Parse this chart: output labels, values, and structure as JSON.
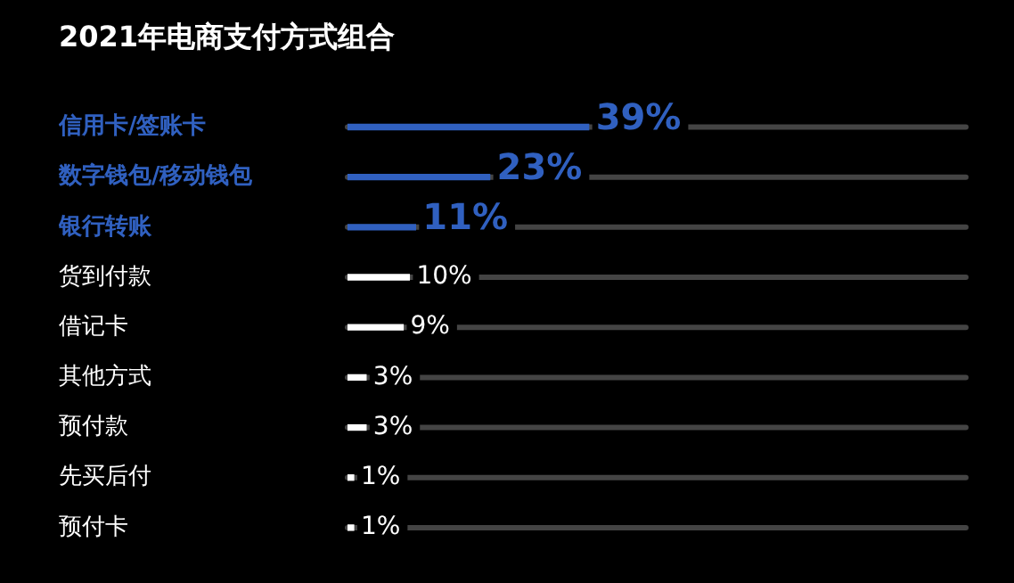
{
  "chart_data": {
    "type": "bar",
    "orientation": "horizontal",
    "title": "2021年电商支付方式组合",
    "categories": [
      "信用卡/签账卡",
      "数字钱包/移动钱包",
      "银行转账",
      "货到付款",
      "借记卡",
      "其他方式",
      "预付款",
      "先买后付",
      "预付卡"
    ],
    "values": [
      39,
      23,
      11,
      10,
      9,
      3,
      3,
      1,
      1
    ],
    "colors": [
      "#3060c0",
      "#3060c0",
      "#3060c0",
      "#ffffff",
      "#ffffff",
      "#ffffff",
      "#ffffff",
      "#ffffff",
      "#ffffff"
    ],
    "value_labels": [
      "39%",
      "23%",
      "11%",
      "10%",
      "9%",
      "3%",
      "3%",
      "1%",
      "1%"
    ],
    "xlim": [
      0,
      100
    ],
    "tick_labels": "y",
    "legend": false
  }
}
